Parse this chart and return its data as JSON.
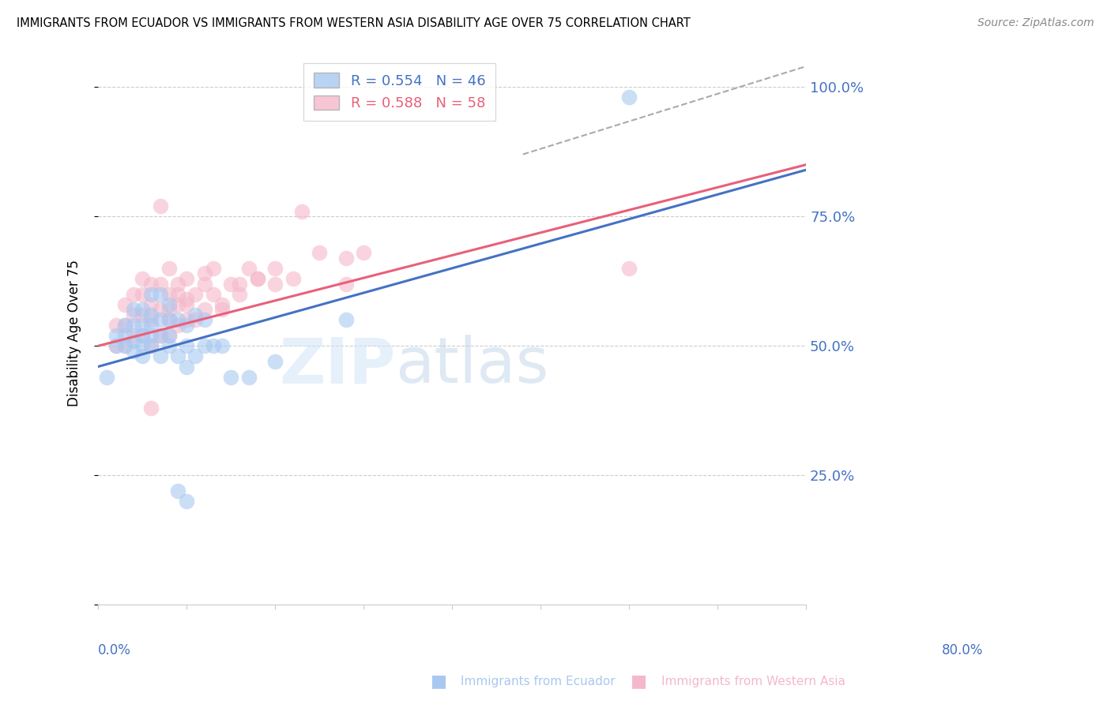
{
  "title": "IMMIGRANTS FROM ECUADOR VS IMMIGRANTS FROM WESTERN ASIA DISABILITY AGE OVER 75 CORRELATION CHART",
  "source": "Source: ZipAtlas.com",
  "ylabel": "Disability Age Over 75",
  "y_ticks": [
    0.0,
    0.25,
    0.5,
    0.75,
    1.0
  ],
  "y_tick_labels": [
    "",
    "25.0%",
    "50.0%",
    "75.0%",
    "100.0%"
  ],
  "x_min": 0.0,
  "x_max": 0.8,
  "y_min": 0.0,
  "y_max": 1.05,
  "ecuador_color": "#A8C8F0",
  "western_color": "#F5B8CB",
  "ecuador_line_color": "#4472C4",
  "western_line_color": "#E8607A",
  "watermark_zip": "ZIP",
  "watermark_atlas": "atlas",
  "ecuador_scatter_x": [
    0.01,
    0.02,
    0.02,
    0.03,
    0.03,
    0.03,
    0.04,
    0.04,
    0.04,
    0.04,
    0.05,
    0.05,
    0.05,
    0.05,
    0.05,
    0.06,
    0.06,
    0.06,
    0.06,
    0.06,
    0.07,
    0.07,
    0.07,
    0.07,
    0.08,
    0.08,
    0.08,
    0.08,
    0.09,
    0.09,
    0.1,
    0.1,
    0.1,
    0.11,
    0.11,
    0.12,
    0.12,
    0.13,
    0.14,
    0.15,
    0.17,
    0.2,
    0.28,
    0.6,
    0.09,
    0.1
  ],
  "ecuador_scatter_y": [
    0.44,
    0.5,
    0.52,
    0.5,
    0.52,
    0.54,
    0.49,
    0.51,
    0.54,
    0.57,
    0.48,
    0.5,
    0.52,
    0.54,
    0.57,
    0.5,
    0.52,
    0.54,
    0.56,
    0.6,
    0.48,
    0.52,
    0.55,
    0.6,
    0.5,
    0.52,
    0.55,
    0.58,
    0.48,
    0.55,
    0.46,
    0.5,
    0.54,
    0.48,
    0.56,
    0.5,
    0.55,
    0.5,
    0.5,
    0.44,
    0.44,
    0.47,
    0.55,
    0.98,
    0.22,
    0.2
  ],
  "western_scatter_x": [
    0.02,
    0.02,
    0.03,
    0.03,
    0.03,
    0.04,
    0.04,
    0.04,
    0.05,
    0.05,
    0.05,
    0.05,
    0.06,
    0.06,
    0.06,
    0.06,
    0.07,
    0.07,
    0.07,
    0.08,
    0.08,
    0.08,
    0.08,
    0.09,
    0.09,
    0.09,
    0.1,
    0.1,
    0.1,
    0.11,
    0.11,
    0.12,
    0.12,
    0.13,
    0.13,
    0.14,
    0.15,
    0.16,
    0.17,
    0.18,
    0.2,
    0.22,
    0.25,
    0.28,
    0.3,
    0.23,
    0.1,
    0.12,
    0.14,
    0.16,
    0.18,
    0.2,
    0.28,
    0.6,
    0.08,
    0.09,
    0.07,
    0.06
  ],
  "western_scatter_y": [
    0.5,
    0.54,
    0.5,
    0.54,
    0.58,
    0.52,
    0.56,
    0.6,
    0.52,
    0.56,
    0.6,
    0.63,
    0.5,
    0.55,
    0.58,
    0.62,
    0.52,
    0.57,
    0.62,
    0.52,
    0.57,
    0.6,
    0.65,
    0.54,
    0.58,
    0.62,
    0.55,
    0.59,
    0.63,
    0.55,
    0.6,
    0.57,
    0.62,
    0.6,
    0.65,
    0.58,
    0.62,
    0.62,
    0.65,
    0.63,
    0.65,
    0.63,
    0.68,
    0.67,
    0.68,
    0.76,
    0.58,
    0.64,
    0.57,
    0.6,
    0.63,
    0.62,
    0.62,
    0.65,
    0.55,
    0.6,
    0.77,
    0.38
  ],
  "ecuador_trendline": [
    0.46,
    0.84
  ],
  "western_trendline": [
    0.5,
    0.85
  ],
  "dashed_line_x": [
    0.48,
    0.8
  ],
  "dashed_line_y": [
    0.87,
    1.04
  ]
}
